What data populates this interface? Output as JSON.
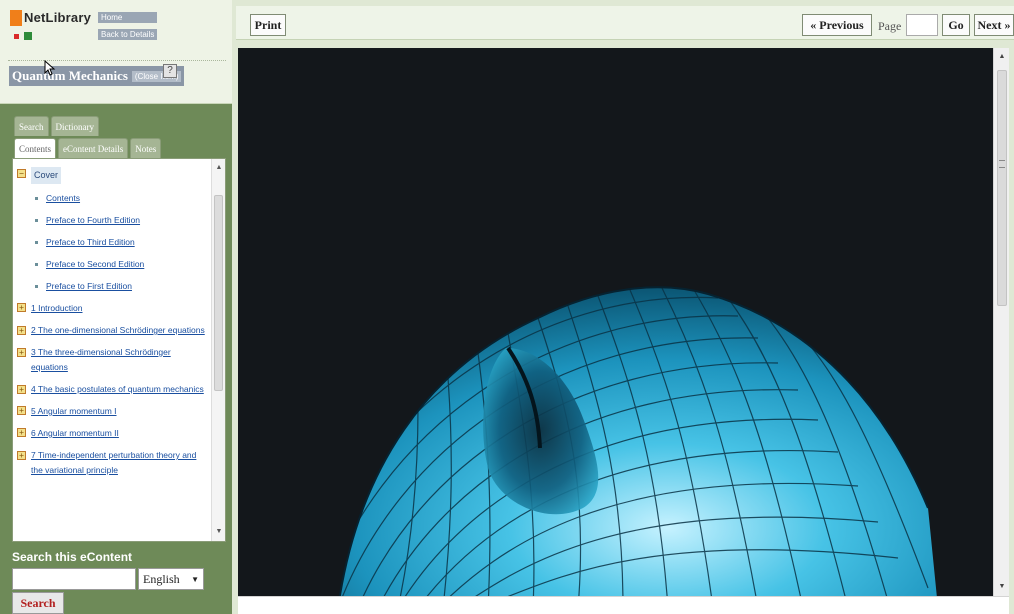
{
  "header": {
    "brand": "NetLibrary",
    "home_link": "Home",
    "back_link": "Back to Details",
    "book_title": "Quantum Mechanics",
    "close_item": "(Close Item)",
    "help": "?"
  },
  "tabs_row1": [
    "Search",
    "Dictionary"
  ],
  "tabs_row2": [
    "Contents",
    "eContent Details",
    "Notes"
  ],
  "toc": {
    "cover": "Cover",
    "items": [
      "Contents",
      "Preface to Fourth Edition",
      "Preface to Third Edition",
      "Preface to Second Edition",
      "Preface to First Edition"
    ],
    "chapters": [
      "1 Introduction",
      "2 The one-dimensional Schrödinger equations",
      "3 The three-dimensional Schrödinger equations",
      "4 The basic postulates of quantum mechanics",
      "5 Angular momentum I",
      "6 Angular momentum II",
      "7 Time-independent perturbation theory and the variational principle"
    ]
  },
  "search": {
    "label": "Search this eContent",
    "language": "English",
    "button": "Search"
  },
  "toolbar": {
    "print": "Print",
    "previous": "« Previous",
    "page_label": "Page",
    "go": "Go",
    "next": "Next »"
  },
  "colors": {
    "sidebar": "#6e8a58",
    "canvas": "#13171b",
    "torus": "#2aa7c9"
  }
}
